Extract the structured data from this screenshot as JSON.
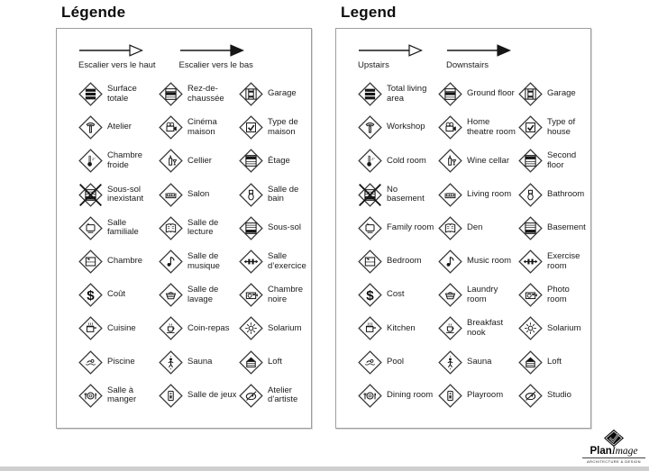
{
  "panels": [
    {
      "id": "legend-panel-french",
      "title": "Légende",
      "arrows": [
        {
          "icon": "stairs-up-arrow",
          "style": "outline",
          "label": "Escalier vers le haut"
        },
        {
          "icon": "stairs-down-arrow",
          "style": "filled",
          "label": "Escalier vers le bas"
        }
      ],
      "items": [
        {
          "icon": "total-living-area",
          "label": "Surface totale"
        },
        {
          "icon": "ground-floor",
          "label": "Rez-de-chaussée"
        },
        {
          "icon": "garage",
          "label": "Garage"
        },
        {
          "icon": "workshop",
          "label": "Atelier"
        },
        {
          "icon": "home-theatre",
          "label": "Cinéma maison"
        },
        {
          "icon": "house-type",
          "label": "Type de maison"
        },
        {
          "icon": "cold-room",
          "label": "Chambre froide"
        },
        {
          "icon": "wine-cellar",
          "label": "Cellier"
        },
        {
          "icon": "second-floor",
          "label": "Étage"
        },
        {
          "icon": "no-basement",
          "label": "Sous-sol inexistant"
        },
        {
          "icon": "living-room",
          "label": "Salon"
        },
        {
          "icon": "bathroom",
          "label": "Salle de bain"
        },
        {
          "icon": "family-room",
          "label": "Salle familiale"
        },
        {
          "icon": "den",
          "label": "Salle de lecture"
        },
        {
          "icon": "basement",
          "label": "Sous-sol"
        },
        {
          "icon": "bedroom",
          "label": "Chambre"
        },
        {
          "icon": "music-room",
          "label": "Salle de musique"
        },
        {
          "icon": "exercise-room",
          "label": "Salle d’exercice"
        },
        {
          "icon": "cost",
          "label": "Coût"
        },
        {
          "icon": "laundry-room",
          "label": "Salle de lavage"
        },
        {
          "icon": "photo-room",
          "label": "Chambre noire"
        },
        {
          "icon": "kitchen",
          "label": "Cuisine"
        },
        {
          "icon": "breakfast-nook",
          "label": "Coin-repas"
        },
        {
          "icon": "solarium",
          "label": "Solarium"
        },
        {
          "icon": "pool",
          "label": "Piscine"
        },
        {
          "icon": "sauna",
          "label": "Sauna"
        },
        {
          "icon": "loft",
          "label": "Loft"
        },
        {
          "icon": "dining-room",
          "label": "Salle à manger"
        },
        {
          "icon": "playroom",
          "label": "Salle de jeux"
        },
        {
          "icon": "studio",
          "label": "Atelier d’artiste"
        }
      ]
    },
    {
      "id": "legend-panel-english",
      "title": "Legend",
      "arrows": [
        {
          "icon": "stairs-up-arrow",
          "style": "outline",
          "label": "Upstairs"
        },
        {
          "icon": "stairs-down-arrow",
          "style": "filled",
          "label": "Downstairs"
        }
      ],
      "items": [
        {
          "icon": "total-living-area",
          "label": "Total living area"
        },
        {
          "icon": "ground-floor",
          "label": "Ground floor"
        },
        {
          "icon": "garage",
          "label": "Garage"
        },
        {
          "icon": "workshop",
          "label": "Workshop"
        },
        {
          "icon": "home-theatre",
          "label": "Home theatre room"
        },
        {
          "icon": "house-type",
          "label": "Type of house"
        },
        {
          "icon": "cold-room",
          "label": "Cold room"
        },
        {
          "icon": "wine-cellar",
          "label": "Wine cellar"
        },
        {
          "icon": "second-floor",
          "label": "Second floor"
        },
        {
          "icon": "no-basement",
          "label": "No basement"
        },
        {
          "icon": "living-room",
          "label": "Living room"
        },
        {
          "icon": "bathroom",
          "label": "Bathroom"
        },
        {
          "icon": "family-room",
          "label": "Family room"
        },
        {
          "icon": "den",
          "label": "Den"
        },
        {
          "icon": "basement",
          "label": "Basement"
        },
        {
          "icon": "bedroom",
          "label": "Bedroom"
        },
        {
          "icon": "music-room",
          "label": "Music room"
        },
        {
          "icon": "exercise-room",
          "label": "Exercise room"
        },
        {
          "icon": "cost",
          "label": "Cost"
        },
        {
          "icon": "laundry-room",
          "label": "Laundry room"
        },
        {
          "icon": "photo-room",
          "label": "Photo room"
        },
        {
          "icon": "kitchen",
          "label": "Kitchen"
        },
        {
          "icon": "breakfast-nook",
          "label": "Breakfast nook"
        },
        {
          "icon": "solarium",
          "label": "Solarium"
        },
        {
          "icon": "pool",
          "label": "Pool"
        },
        {
          "icon": "sauna",
          "label": "Sauna"
        },
        {
          "icon": "loft",
          "label": "Loft"
        },
        {
          "icon": "dining-room",
          "label": "Dining room"
        },
        {
          "icon": "playroom",
          "label": "Playroom"
        },
        {
          "icon": "studio",
          "label": "Studio"
        }
      ]
    }
  ],
  "logo": {
    "brand_bold": "Plan",
    "brand_italic": "Image",
    "tagline": "ARCHITECTURE & DESIGN"
  },
  "colors": {
    "ink": "#161616",
    "panel_border": "#9e9e9e",
    "bottom_strip": "#cfcfcf"
  }
}
